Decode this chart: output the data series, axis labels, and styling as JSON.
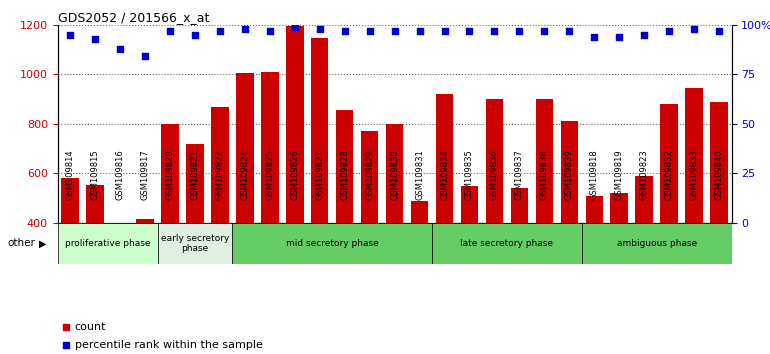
{
  "title": "GDS2052 / 201566_x_at",
  "samples": [
    "GSM109814",
    "GSM109815",
    "GSM109816",
    "GSM109817",
    "GSM109820",
    "GSM109821",
    "GSM109822",
    "GSM109824",
    "GSM109825",
    "GSM109826",
    "GSM109827",
    "GSM109828",
    "GSM109829",
    "GSM109830",
    "GSM109831",
    "GSM109834",
    "GSM109835",
    "GSM109836",
    "GSM109837",
    "GSM109838",
    "GSM109839",
    "GSM109818",
    "GSM109819",
    "GSM109823",
    "GSM109832",
    "GSM109833",
    "GSM109840"
  ],
  "counts": [
    580,
    555,
    390,
    415,
    800,
    720,
    870,
    1005,
    1010,
    1195,
    1145,
    855,
    770,
    800,
    490,
    920,
    550,
    900,
    540,
    900,
    810,
    510,
    520,
    590,
    880,
    945,
    890
  ],
  "percentile": [
    95,
    93,
    88,
    84,
    97,
    95,
    97,
    98,
    97,
    99,
    98,
    97,
    97,
    97,
    97,
    97,
    97,
    97,
    97,
    97,
    97,
    94,
    94,
    95,
    97,
    98,
    97
  ],
  "phases": [
    {
      "label": "proliferative phase",
      "start": 0,
      "end": 4,
      "color": "#ccffcc"
    },
    {
      "label": "early secretory\nphase",
      "start": 4,
      "end": 7,
      "color": "#e0f0e0"
    },
    {
      "label": "mid secretory phase",
      "start": 7,
      "end": 15,
      "color": "#66cc66"
    },
    {
      "label": "late secretory phase",
      "start": 15,
      "end": 21,
      "color": "#66cc66"
    },
    {
      "label": "ambiguous phase",
      "start": 21,
      "end": 27,
      "color": "#66cc66"
    }
  ],
  "bar_color": "#cc0000",
  "dot_color": "#0000cc",
  "ylim_left": [
    400,
    1200
  ],
  "ylim_right": [
    0,
    100
  ],
  "yticks_left": [
    400,
    600,
    800,
    1000,
    1200
  ],
  "yticks_right": [
    0,
    25,
    50,
    75,
    100
  ],
  "legend_count_color": "#cc0000",
  "legend_pct_color": "#0000cc",
  "bg_color": "#ffffff"
}
